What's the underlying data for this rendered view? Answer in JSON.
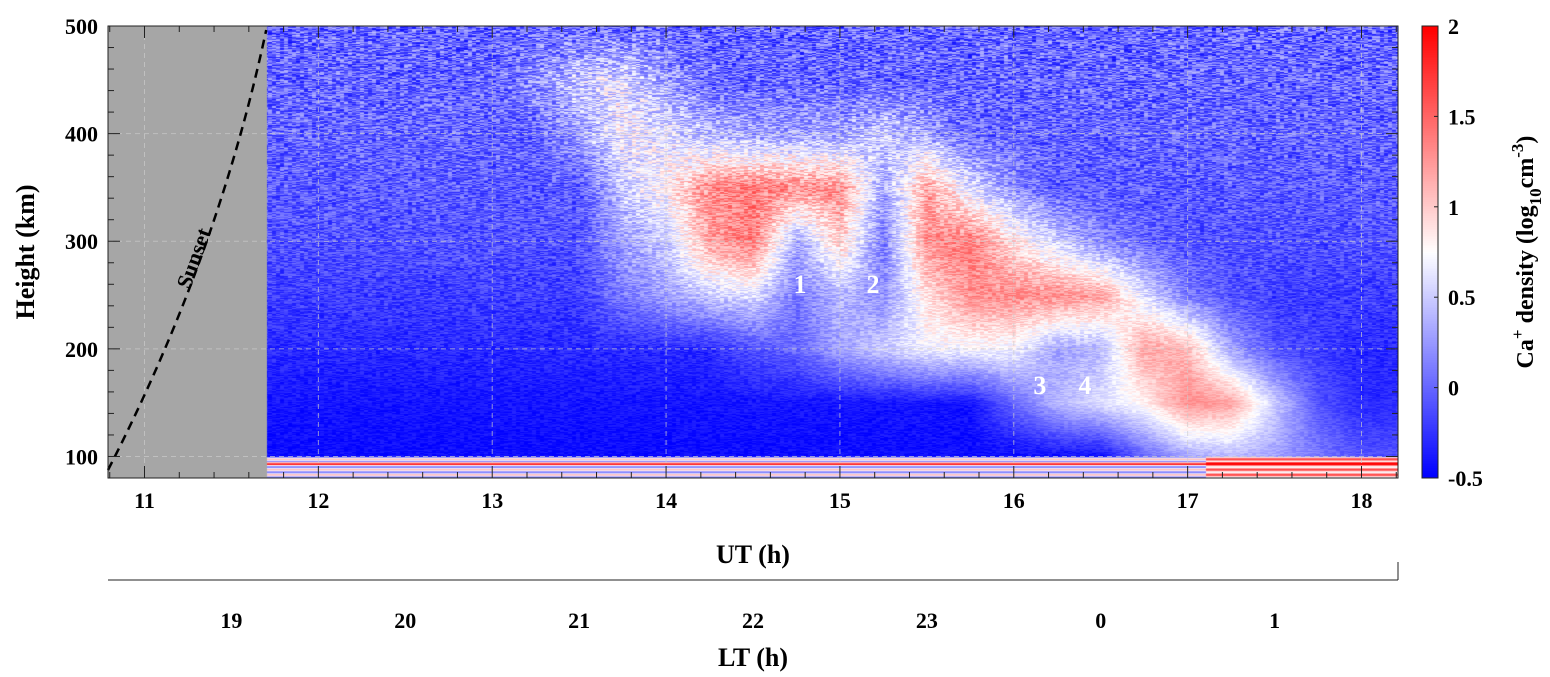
{
  "chart_data": {
    "type": "heatmap",
    "xlabel": "UT (h)",
    "ylabel": "Height (km)",
    "x2label": "LT (h)",
    "colorbar_label": {
      "base": "Ca",
      "sup": "+",
      "mid": " density (log",
      "sub": "10",
      "unit": "cm",
      "unit_sup": "-3",
      "close": ")"
    },
    "xlim": [
      10.79,
      18.21
    ],
    "ylim": [
      80,
      500
    ],
    "clim": [
      -0.5,
      2
    ],
    "x_ticks": [
      "11",
      "12",
      "13",
      "14",
      "15",
      "16",
      "17",
      "18"
    ],
    "x_tick_values": [
      11,
      12,
      13,
      14,
      15,
      16,
      17,
      18
    ],
    "y_ticks": [
      "100",
      "200",
      "300",
      "400",
      "500"
    ],
    "y_tick_values": [
      100,
      200,
      300,
      400,
      500
    ],
    "lt_ticks": [
      "19",
      "20",
      "21",
      "22",
      "23",
      "0",
      "1"
    ],
    "lt_tick_ut_values": [
      11.5,
      12.5,
      13.5,
      14.5,
      15.5,
      16.5,
      17.5
    ],
    "colorbar_ticks": [
      "-0.5",
      "0",
      "0.5",
      "1",
      "1.5",
      "2"
    ],
    "colorbar_tick_values": [
      -0.5,
      0,
      0.5,
      1,
      1.5,
      2
    ],
    "colormap": {
      "low": "#0000ff",
      "mid": "#ffffff",
      "high": "#ff0000"
    },
    "grid": true,
    "no_data_until_ut": 11.7,
    "no_data_color": "#a6a6a6",
    "sunset_label": "Sunset",
    "annotations": [
      {
        "text": "1",
        "ut": 14.77,
        "height": 252
      },
      {
        "text": "2",
        "ut": 15.19,
        "height": 252
      },
      {
        "text": "3",
        "ut": 16.15,
        "height": 158
      },
      {
        "text": "4",
        "ut": 16.41,
        "height": 158
      }
    ],
    "x": [
      11.75,
      12,
      12.25,
      12.5,
      12.75,
      13,
      13.25,
      13.5,
      13.75,
      14,
      14.25,
      14.5,
      14.75,
      15,
      15.25,
      15.5,
      15.75,
      16,
      16.25,
      16.5,
      16.75,
      17,
      17.25,
      17.5,
      17.75,
      18
    ],
    "heights": [
      90,
      100,
      150,
      200,
      250,
      300,
      350,
      400,
      450,
      500
    ],
    "values": [
      [
        0.8,
        0.8,
        0.8,
        0.8,
        0.8,
        0.8,
        0.8,
        0.8,
        0.8,
        0.8,
        0.8,
        0.8,
        0.8,
        0.8,
        0.8,
        0.8,
        0.8,
        0.8,
        0.8,
        0.8,
        0.8,
        1.0,
        1.5,
        1.5,
        1.3,
        1.3
      ],
      [
        -0.45,
        -0.45,
        -0.45,
        -0.45,
        -0.45,
        -0.45,
        -0.45,
        -0.45,
        -0.45,
        -0.45,
        -0.45,
        -0.45,
        -0.45,
        -0.45,
        -0.45,
        -0.45,
        -0.45,
        -0.45,
        -0.45,
        -0.45,
        0,
        0.3,
        0.4,
        0.3,
        0.1,
        -0.1
      ],
      [
        -0.4,
        -0.4,
        -0.4,
        -0.4,
        -0.4,
        -0.4,
        -0.4,
        -0.4,
        -0.4,
        -0.4,
        -0.4,
        -0.4,
        -0.4,
        -0.4,
        -0.4,
        -0.4,
        -0.4,
        0,
        0.4,
        0.6,
        0.8,
        1.3,
        1.2,
        0.5,
        -0.1,
        -0.3
      ],
      [
        -0.3,
        -0.3,
        -0.3,
        -0.3,
        -0.3,
        -0.3,
        -0.3,
        -0.3,
        -0.3,
        -0.3,
        -0.3,
        -0.1,
        0,
        0.3,
        0.5,
        0.7,
        0.7,
        0.7,
        0.3,
        0.4,
        1.2,
        1.1,
        0.3,
        -0.1,
        -0.2,
        -0.3
      ],
      [
        -0.2,
        -0.2,
        -0.2,
        -0.2,
        -0.2,
        -0.2,
        -0.2,
        -0.2,
        0.1,
        0.3,
        0.5,
        0.6,
        0.1,
        0.4,
        0.2,
        0.9,
        1.3,
        1.3,
        1.3,
        1.2,
        0.6,
        0.1,
        -0.1,
        -0.2,
        -0.2,
        -0.2
      ],
      [
        -0.1,
        -0.1,
        -0.1,
        -0.1,
        -0.1,
        -0.1,
        -0.1,
        -0.1,
        0.3,
        0.5,
        1.2,
        1.4,
        0.3,
        1.0,
        0.1,
        1.3,
        1.4,
        0.9,
        0.5,
        0.2,
        0,
        -0.1,
        -0.1,
        -0.1,
        -0.1,
        -0.1
      ],
      [
        -0.05,
        -0.05,
        -0.05,
        -0.05,
        -0.05,
        -0.05,
        -0.05,
        -0.05,
        0.5,
        0.8,
        1.3,
        1.4,
        1.3,
        1.3,
        0.3,
        1.2,
        0.6,
        0.2,
        -0.05,
        -0.05,
        -0.05,
        -0.05,
        -0.05,
        -0.05,
        -0.05,
        -0.05
      ],
      [
        0,
        0,
        0,
        0,
        0,
        0,
        0,
        0.3,
        0.7,
        0.6,
        0.4,
        0.3,
        0.3,
        0.3,
        0.5,
        0.3,
        0,
        0,
        0,
        0,
        0,
        0,
        0,
        0,
        0,
        0
      ],
      [
        0,
        0,
        0,
        0,
        0,
        0,
        0.2,
        0.5,
        0.6,
        0.3,
        0,
        0,
        0,
        0,
        0,
        0,
        0,
        0,
        0,
        0,
        0,
        0,
        0,
        0,
        0,
        0
      ],
      [
        0,
        0,
        0,
        0,
        0,
        0,
        0,
        0,
        0,
        0,
        0,
        0,
        0,
        0,
        0,
        0,
        0,
        0,
        0,
        0,
        0,
        0,
        0,
        0,
        0,
        0
      ]
    ]
  }
}
